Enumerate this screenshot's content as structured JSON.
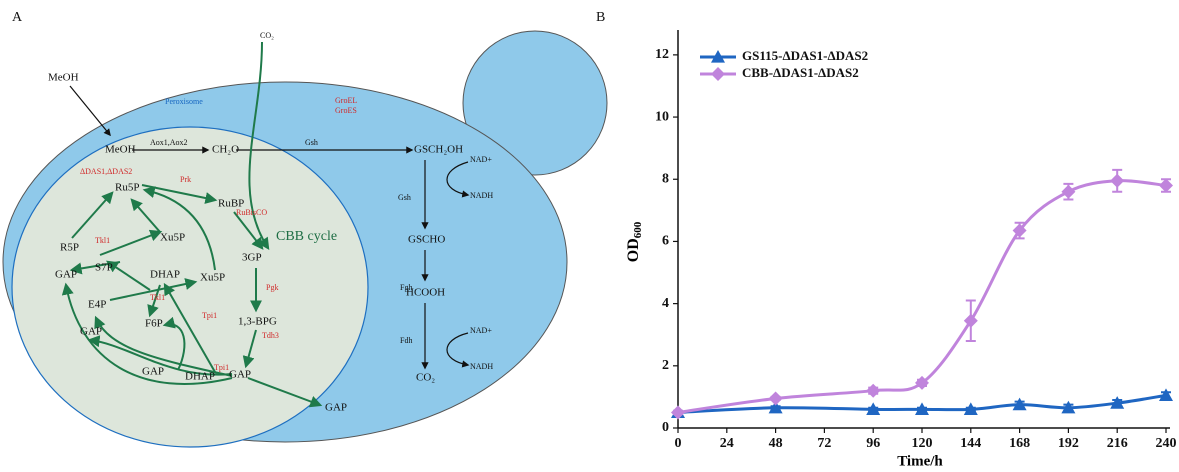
{
  "panels": {
    "a": "A",
    "b": "B"
  },
  "diagram": {
    "labels": [
      "MeOH",
      "CO₂",
      "Peroxisome",
      "GroEL",
      "GroES",
      "MeOH",
      "Aox1,Aox2",
      "CH₂O",
      "Gsh",
      "GSCH₂OH",
      "NAD+",
      "NADH",
      "Gsh",
      "GSCHO",
      "Fgh",
      "HCOOH",
      "Fdh",
      "NAD+",
      "NADH",
      "CO₂",
      "ΔDAS1,ΔDAS2",
      "Ru5P",
      "Prk",
      "RuBP",
      "RuBisCO",
      "Xu5P",
      "R5P",
      "Tkl1",
      "GAP",
      "S7P",
      "DHAP",
      "Xu5P",
      "E4P",
      "Tkl1",
      "Tpi1",
      "F6P",
      "GAP",
      "GAP",
      "DHAP",
      "Tpi1",
      "GAP",
      "3GP",
      "Pgk",
      "1,3-BPG",
      "Tdh3",
      "CBB cycle",
      "GAP"
    ]
  },
  "chart_data": {
    "type": "line",
    "x_label": "Time/h",
    "y_label": "OD",
    "y_label_subscript": "600",
    "x": [
      0,
      48,
      96,
      120,
      144,
      168,
      192,
      216,
      240
    ],
    "series": [
      {
        "name": "GS115-ΔDAS1-ΔDAS2",
        "color": "#1f66c2",
        "marker": "triangle",
        "values": [
          0.5,
          0.65,
          0.6,
          0.6,
          0.6,
          0.75,
          0.65,
          0.8,
          1.05
        ],
        "errors": [
          0.05,
          0.05,
          0.05,
          0.05,
          0.05,
          0.1,
          0.1,
          0.1,
          0.1
        ]
      },
      {
        "name": "CBB-ΔDAS1-ΔDAS2",
        "color": "#c084dc",
        "marker": "diamond",
        "values": [
          0.5,
          0.95,
          1.2,
          1.45,
          3.45,
          6.35,
          7.6,
          7.95,
          7.8
        ],
        "errors": [
          0.05,
          0.05,
          0.1,
          0.1,
          0.65,
          0.25,
          0.25,
          0.35,
          0.2
        ]
      }
    ],
    "xlim": [
      0,
      240
    ],
    "xticks": [
      0,
      24,
      48,
      72,
      96,
      120,
      144,
      168,
      192,
      216,
      240
    ],
    "ylim": [
      0,
      12.8
    ],
    "yticks": [
      0,
      2,
      4,
      6,
      8,
      10,
      12
    ],
    "grid": false,
    "legend": "upper-left"
  }
}
